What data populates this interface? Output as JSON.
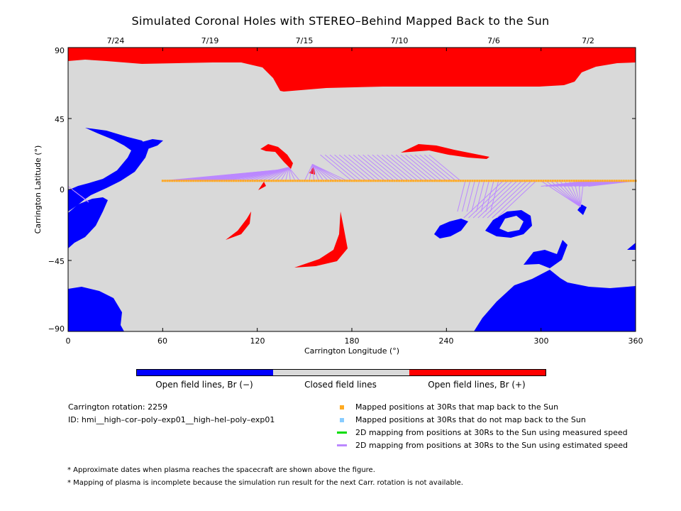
{
  "chart_data": {
    "type": "map",
    "title": "Simulated Coronal Holes with STEREO–Behind Mapped Back to the Sun",
    "xlabel": "Carrington Longitude (°)",
    "ylabel": "Carrington Latitude (°)",
    "xlim": [
      0,
      360
    ],
    "ylim": [
      -90,
      90
    ],
    "xticks": [
      "0",
      "60",
      "120",
      "180",
      "240",
      "300",
      "360"
    ],
    "yticks": [
      "90",
      "45",
      "0",
      "−45",
      "−90"
    ],
    "top_dates": [
      {
        "label": "7/24",
        "lon": 30
      },
      {
        "label": "7/19",
        "lon": 90
      },
      {
        "label": "7/15",
        "lon": 150
      },
      {
        "label": "7/10",
        "lon": 210
      },
      {
        "label": "7/6",
        "lon": 270
      },
      {
        "label": "7/2",
        "lon": 330
      }
    ],
    "mapped_track_latitude": 5.5,
    "mapped_track_lon_range": [
      60,
      360
    ]
  },
  "colorbar": {
    "negative_label": "Open field lines, Br (−)",
    "closed_label": "Closed field lines",
    "positive_label": "Open field lines, Br (+)",
    "colors": {
      "negative": "#0000ff",
      "closed": "#d9d9d9",
      "positive": "#ff0000"
    }
  },
  "info": {
    "rotation": "Carrington rotation: 2259",
    "id": "ID: hmi__high–cor–poly–exp01__high–hel–poly–exp01"
  },
  "legend": [
    {
      "label": "Mapped positions at 30Rs that map back to the Sun",
      "color": "#ffaa22",
      "kind": "square"
    },
    {
      "label": "Mapped positions at 30Rs that do not map back to the Sun",
      "color": "#88ccff",
      "kind": "square"
    },
    {
      "label": "2D mapping from positions at 30Rs to the Sun using measured speed",
      "color": "#00dd00",
      "kind": "line"
    },
    {
      "label": "2D mapping from positions at 30Rs to the Sun using estimated speed",
      "color": "#bb88ff",
      "kind": "line"
    }
  ],
  "notes": [
    "* Approximate dates when plasma reaches the spacecraft are shown above the figure.",
    "* Mapping of plasma is incomplete because the simulation run result for the next Carr. rotation is not available."
  ]
}
